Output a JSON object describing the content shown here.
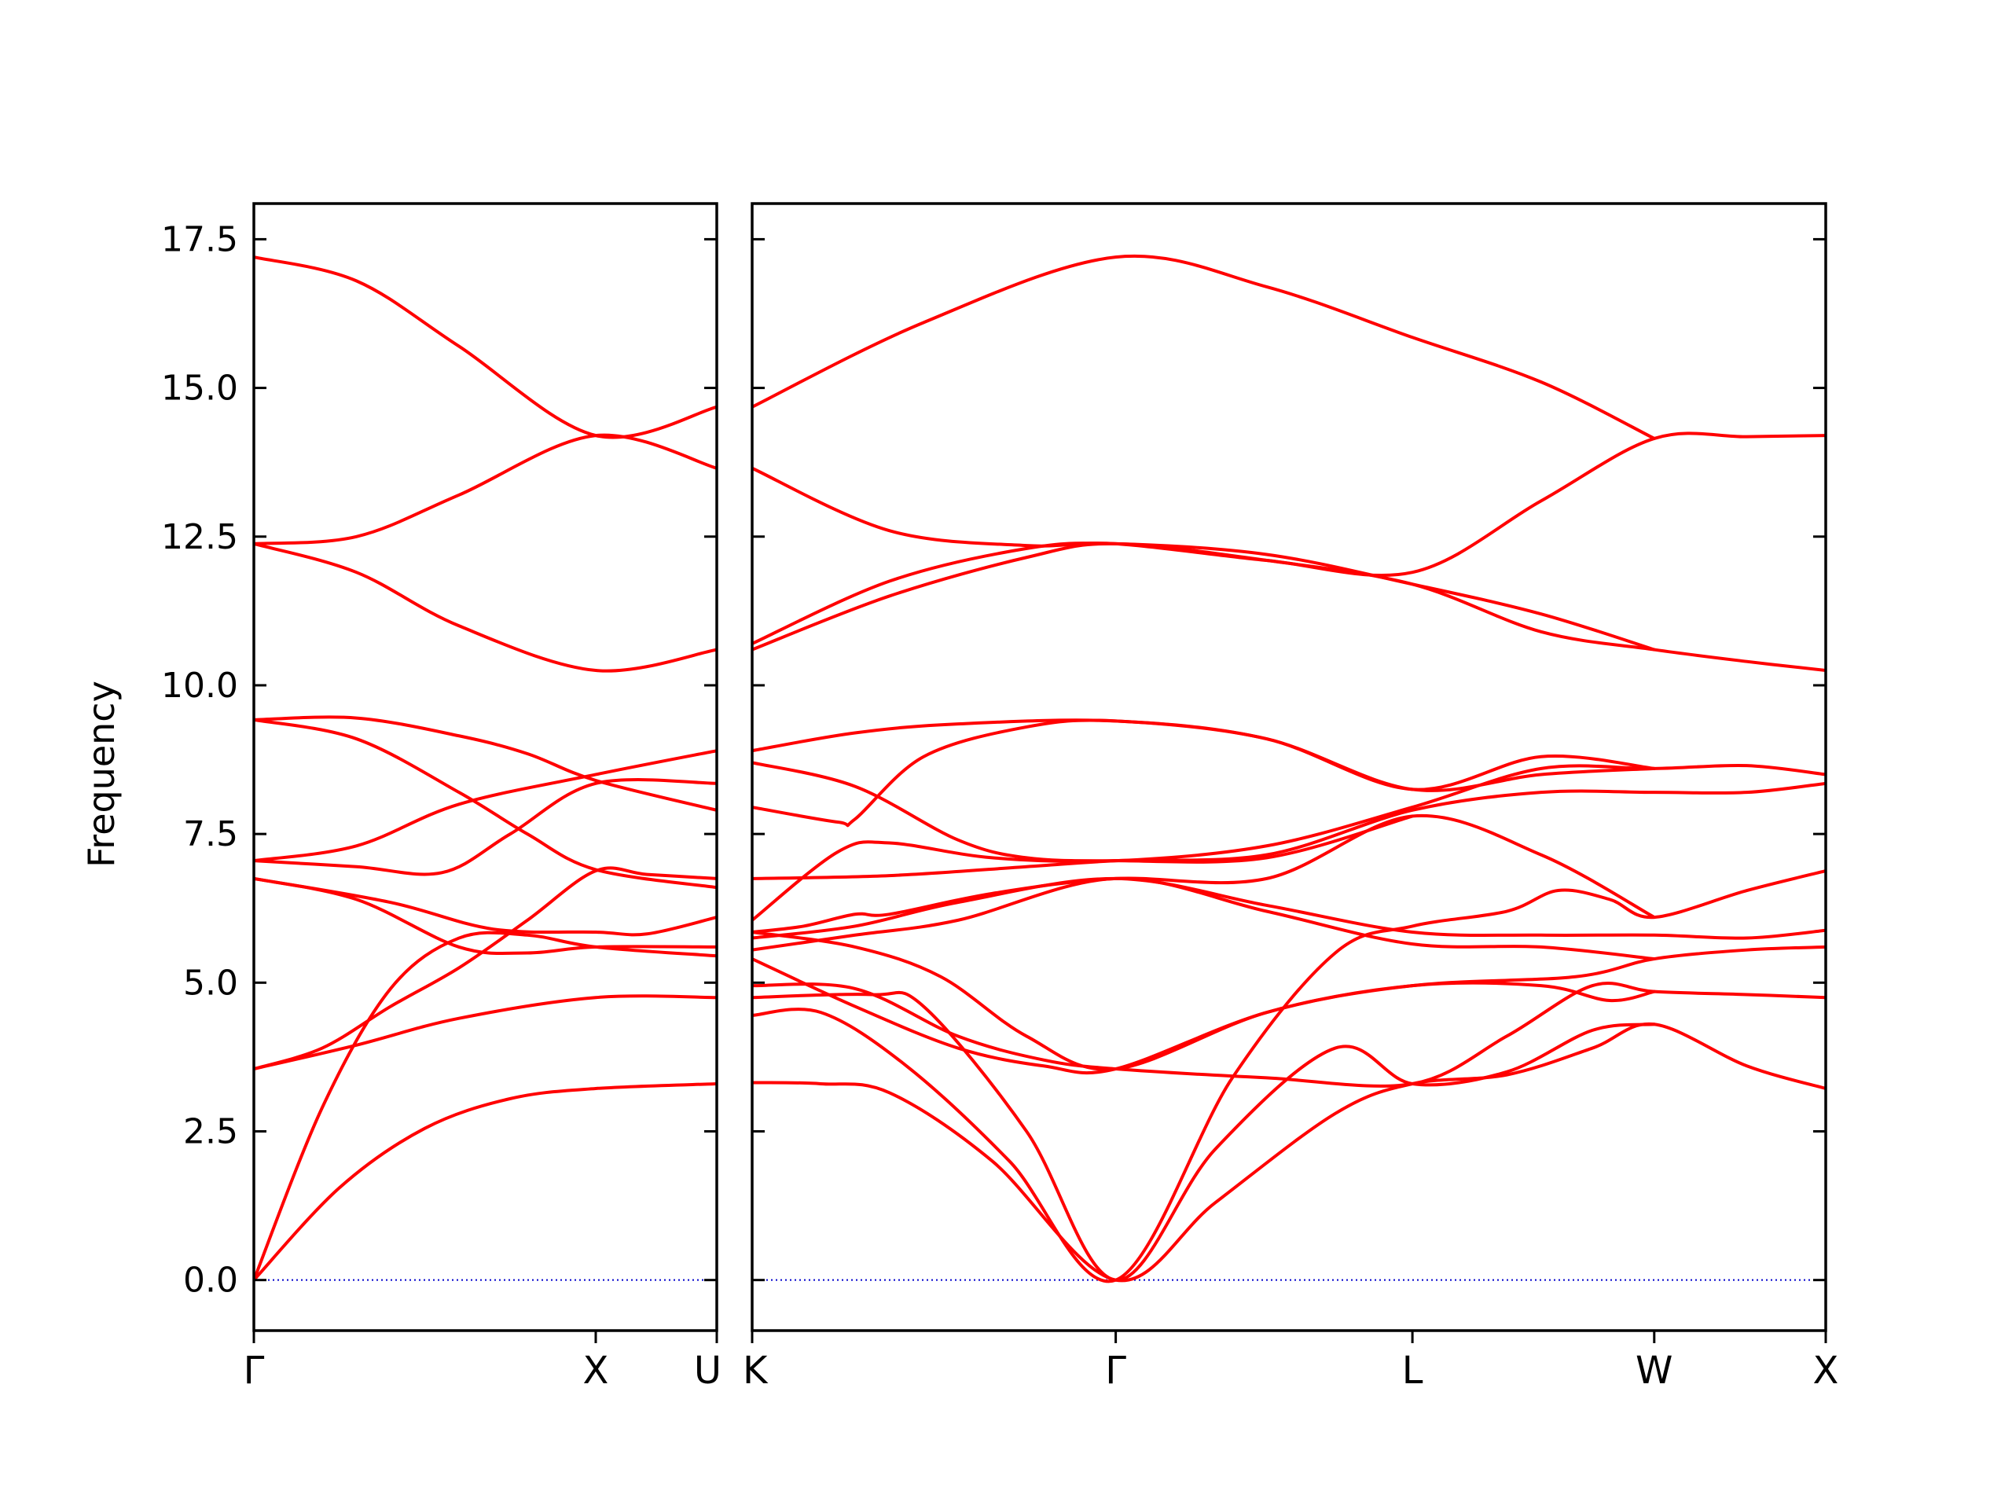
{
  "colors": {
    "band": "#ff0000",
    "zero_line": "#0000cc",
    "axes": "#000000",
    "background": "#ffffff"
  },
  "chart_data": {
    "type": "line",
    "title": "",
    "xlabel": "",
    "ylabel": "Frequency",
    "ylim": [
      -0.85,
      18.1
    ],
    "yticks": [
      "0.0",
      "2.5",
      "5.0",
      "7.5",
      "10.0",
      "12.5",
      "15.0",
      "17.5"
    ],
    "grid": false,
    "legend": "none",
    "zero_line": 0.0,
    "panels": [
      {
        "kpoints": [
          "Γ",
          "X",
          "U"
        ],
        "kpoint_positions": [
          0.0,
          1.0,
          1.354
        ],
        "x_range": [
          0.0,
          1.354
        ],
        "bands": [
          [
            [
              0,
              0
            ],
            [
              0.25,
              1.55
            ],
            [
              0.5,
              2.55
            ],
            [
              0.75,
              3.05
            ],
            [
              1.0,
              3.22
            ],
            [
              1.354,
              3.3
            ]
          ],
          [
            [
              0,
              0
            ],
            [
              0.2,
              2.9
            ],
            [
              0.4,
              4.9
            ],
            [
              0.6,
              5.75
            ],
            [
              0.8,
              5.8
            ],
            [
              1.0,
              5.6
            ],
            [
              1.354,
              5.45
            ]
          ],
          [
            [
              0,
              3.55
            ],
            [
              0.3,
              3.95
            ],
            [
              0.6,
              4.4
            ],
            [
              1.0,
              4.75
            ],
            [
              1.354,
              4.75
            ]
          ],
          [
            [
              0,
              3.55
            ],
            [
              0.2,
              3.9
            ],
            [
              0.4,
              4.6
            ],
            [
              0.6,
              5.25
            ],
            [
              0.8,
              6.05
            ],
            [
              1.0,
              6.88
            ],
            [
              1.15,
              6.82
            ],
            [
              1.354,
              6.75
            ]
          ],
          [
            [
              0,
              6.75
            ],
            [
              0.4,
              6.35
            ],
            [
              0.7,
              5.9
            ],
            [
              1.0,
              5.85
            ],
            [
              1.15,
              5.82
            ],
            [
              1.354,
              6.1
            ]
          ],
          [
            [
              0,
              6.75
            ],
            [
              0.3,
              6.4
            ],
            [
              0.6,
              5.6
            ],
            [
              0.8,
              5.5
            ],
            [
              1.0,
              5.6
            ],
            [
              1.354,
              5.6
            ]
          ],
          [
            [
              0,
              7.05
            ],
            [
              0.3,
              6.95
            ],
            [
              0.55,
              6.85
            ],
            [
              0.75,
              7.5
            ],
            [
              1.0,
              8.35
            ],
            [
              1.354,
              8.35
            ]
          ],
          [
            [
              0,
              7.05
            ],
            [
              0.3,
              7.3
            ],
            [
              0.6,
              8.0
            ],
            [
              1.0,
              8.5
            ],
            [
              1.354,
              8.9
            ]
          ],
          [
            [
              0,
              9.42
            ],
            [
              0.3,
              9.1
            ],
            [
              0.6,
              8.2
            ],
            [
              0.8,
              7.5
            ],
            [
              1.0,
              6.9
            ],
            [
              1.354,
              6.6
            ]
          ],
          [
            [
              0,
              9.42
            ],
            [
              0.3,
              9.45
            ],
            [
              0.6,
              9.15
            ],
            [
              0.8,
              8.85
            ],
            [
              1.0,
              8.4
            ],
            [
              1.354,
              7.9
            ]
          ],
          [
            [
              0,
              12.38
            ],
            [
              0.3,
              11.9
            ],
            [
              0.6,
              11.0
            ],
            [
              1.0,
              10.25
            ],
            [
              1.354,
              10.6
            ]
          ],
          [
            [
              0,
              12.38
            ],
            [
              0.3,
              12.5
            ],
            [
              0.6,
              13.2
            ],
            [
              1.0,
              14.2
            ],
            [
              1.354,
              13.65
            ]
          ],
          [
            [
              0,
              17.2
            ],
            [
              0.3,
              16.8
            ],
            [
              0.6,
              15.7
            ],
            [
              1.0,
              14.2
            ],
            [
              1.354,
              14.68
            ]
          ]
        ]
      },
      {
        "kpoints": [
          "K",
          "Γ",
          "L",
          "W",
          "X"
        ],
        "kpoint_positions": [
          0.0,
          1.06,
          1.925,
          2.63,
          3.13
        ],
        "x_range": [
          0.0,
          3.13
        ],
        "bands": [
          [
            [
              0,
              3.32
            ],
            [
              0.2,
              3.3
            ],
            [
              0.4,
              3.15
            ],
            [
              0.7,
              2.0
            ],
            [
              1.06,
              0
            ],
            [
              1.35,
              1.3
            ],
            [
              1.7,
              2.8
            ],
            [
              1.925,
              3.3
            ],
            [
              2.2,
              3.45
            ],
            [
              2.45,
              3.9
            ],
            [
              2.63,
              4.3
            ],
            [
              2.9,
              3.6
            ],
            [
              3.13,
              3.22
            ]
          ],
          [
            [
              0,
              4.45
            ],
            [
              0.2,
              4.5
            ],
            [
              0.45,
              3.6
            ],
            [
              0.75,
              2.0
            ],
            [
              1.06,
              0
            ],
            [
              1.4,
              3.4
            ],
            [
              1.7,
              5.5
            ],
            [
              1.925,
              5.95
            ],
            [
              2.2,
              6.2
            ],
            [
              2.35,
              6.55
            ],
            [
              2.5,
              6.4
            ],
            [
              2.63,
              6.1
            ],
            [
              2.9,
              6.55
            ],
            [
              3.13,
              6.88
            ]
          ],
          [
            [
              0,
              4.75
            ],
            [
              0.35,
              4.8
            ],
            [
              0.5,
              4.6
            ],
            [
              0.8,
              2.5
            ],
            [
              1.06,
              0
            ],
            [
              1.35,
              2.2
            ],
            [
              1.7,
              3.9
            ],
            [
              1.925,
              3.3
            ],
            [
              2.2,
              3.5
            ],
            [
              2.45,
              4.2
            ],
            [
              2.63,
              4.3
            ]
          ],
          [
            [
              0,
              4.95
            ],
            [
              0.3,
              4.9
            ],
            [
              0.6,
              4.1
            ],
            [
              0.85,
              3.7
            ],
            [
              1.06,
              3.55
            ],
            [
              1.5,
              3.4
            ],
            [
              1.925,
              3.3
            ],
            [
              2.2,
              4.1
            ],
            [
              2.45,
              4.95
            ],
            [
              2.63,
              4.85
            ],
            [
              2.9,
              4.8
            ],
            [
              3.13,
              4.75
            ]
          ],
          [
            [
              0,
              5.4
            ],
            [
              0.3,
              4.6
            ],
            [
              0.6,
              3.9
            ],
            [
              0.85,
              3.6
            ],
            [
              1.06,
              3.55
            ],
            [
              1.5,
              4.5
            ],
            [
              1.925,
              4.95
            ],
            [
              2.3,
              4.95
            ],
            [
              2.5,
              4.7
            ],
            [
              2.63,
              4.85
            ]
          ],
          [
            [
              0,
              5.85
            ],
            [
              0.3,
              5.6
            ],
            [
              0.55,
              5.1
            ],
            [
              0.8,
              4.1
            ],
            [
              1.06,
              3.55
            ],
            [
              1.5,
              4.5
            ],
            [
              1.925,
              4.95
            ],
            [
              2.4,
              5.1
            ],
            [
              2.63,
              5.4
            ],
            [
              2.9,
              5.55
            ],
            [
              3.13,
              5.6
            ]
          ],
          [
            [
              0,
              5.55
            ],
            [
              0.3,
              5.8
            ],
            [
              0.6,
              6.05
            ],
            [
              1.06,
              6.75
            ],
            [
              1.5,
              6.2
            ],
            [
              1.925,
              5.65
            ],
            [
              2.3,
              5.6
            ],
            [
              2.63,
              5.4
            ]
          ],
          [
            [
              0,
              5.75
            ],
            [
              0.3,
              5.95
            ],
            [
              0.6,
              6.35
            ],
            [
              1.06,
              6.75
            ],
            [
              1.5,
              6.3
            ],
            [
              1.925,
              5.85
            ],
            [
              2.3,
              5.8
            ],
            [
              2.63,
              5.8
            ],
            [
              2.9,
              5.75
            ],
            [
              3.13,
              5.88
            ]
          ],
          [
            [
              0,
              5.85
            ],
            [
              0.15,
              5.95
            ],
            [
              0.3,
              6.15
            ],
            [
              0.4,
              6.15
            ],
            [
              0.7,
              6.5
            ],
            [
              1.06,
              6.75
            ],
            [
              1.5,
              6.75
            ],
            [
              1.925,
              7.8
            ],
            [
              2.3,
              7.15
            ],
            [
              2.63,
              6.1
            ]
          ],
          [
            [
              0,
              6.75
            ],
            [
              0.4,
              6.8
            ],
            [
              0.8,
              6.95
            ],
            [
              1.06,
              7.05
            ],
            [
              1.5,
              7.15
            ],
            [
              1.925,
              7.9
            ],
            [
              2.3,
              8.2
            ],
            [
              2.63,
              8.2
            ],
            [
              2.9,
              8.2
            ],
            [
              3.13,
              8.35
            ]
          ],
          [
            [
              0,
              6.05
            ],
            [
              0.25,
              7.2
            ],
            [
              0.4,
              7.35
            ],
            [
              0.7,
              7.1
            ],
            [
              1.06,
              7.05
            ],
            [
              1.5,
              7.3
            ],
            [
              1.925,
              7.95
            ],
            [
              2.3,
              8.6
            ],
            [
              2.63,
              8.6
            ],
            [
              2.9,
              8.65
            ],
            [
              3.13,
              8.5
            ]
          ],
          [
            [
              0,
              7.95
            ],
            [
              0.25,
              7.7
            ],
            [
              0.3,
              7.75
            ],
            [
              0.5,
              8.8
            ],
            [
              0.8,
              9.3
            ],
            [
              1.06,
              9.4
            ],
            [
              1.5,
              9.1
            ],
            [
              1.925,
              8.25
            ],
            [
              2.3,
              8.8
            ],
            [
              2.63,
              8.6
            ]
          ],
          [
            [
              0,
              8.7
            ],
            [
              0.3,
              8.3
            ],
            [
              0.6,
              7.4
            ],
            [
              0.8,
              7.1
            ],
            [
              1.06,
              7.05
            ],
            [
              1.5,
              7.1
            ],
            [
              1.925,
              7.8
            ]
          ],
          [
            [
              0,
              8.9
            ],
            [
              0.3,
              9.2
            ],
            [
              0.6,
              9.35
            ],
            [
              1.06,
              9.4
            ],
            [
              1.5,
              9.1
            ],
            [
              1.925,
              8.25
            ],
            [
              2.3,
              8.5
            ],
            [
              2.63,
              8.6
            ]
          ],
          [
            [
              0,
              10.6
            ],
            [
              0.4,
              11.5
            ],
            [
              0.8,
              12.15
            ],
            [
              1.06,
              12.38
            ],
            [
              1.5,
              12.1
            ],
            [
              1.925,
              11.7
            ],
            [
              2.3,
              10.9
            ],
            [
              2.63,
              10.6
            ],
            [
              2.9,
              10.4
            ],
            [
              3.13,
              10.25
            ]
          ],
          [
            [
              0,
              10.7
            ],
            [
              0.4,
              11.75
            ],
            [
              0.8,
              12.3
            ],
            [
              1.06,
              12.38
            ],
            [
              1.5,
              12.2
            ],
            [
              1.925,
              11.7
            ],
            [
              2.3,
              11.2
            ],
            [
              2.63,
              10.6
            ]
          ],
          [
            [
              0,
              13.65
            ],
            [
              0.4,
              12.6
            ],
            [
              0.8,
              12.35
            ],
            [
              1.06,
              12.38
            ],
            [
              1.5,
              12.1
            ],
            [
              1.925,
              11.9
            ],
            [
              2.3,
              13.1
            ],
            [
              2.63,
              14.15
            ],
            [
              2.9,
              14.18
            ],
            [
              3.13,
              14.2
            ]
          ],
          [
            [
              0,
              14.68
            ],
            [
              0.5,
              16.1
            ],
            [
              1.06,
              17.2
            ],
            [
              1.5,
              16.7
            ],
            [
              1.925,
              15.85
            ],
            [
              2.3,
              15.1
            ],
            [
              2.63,
              14.15
            ]
          ]
        ]
      }
    ]
  }
}
